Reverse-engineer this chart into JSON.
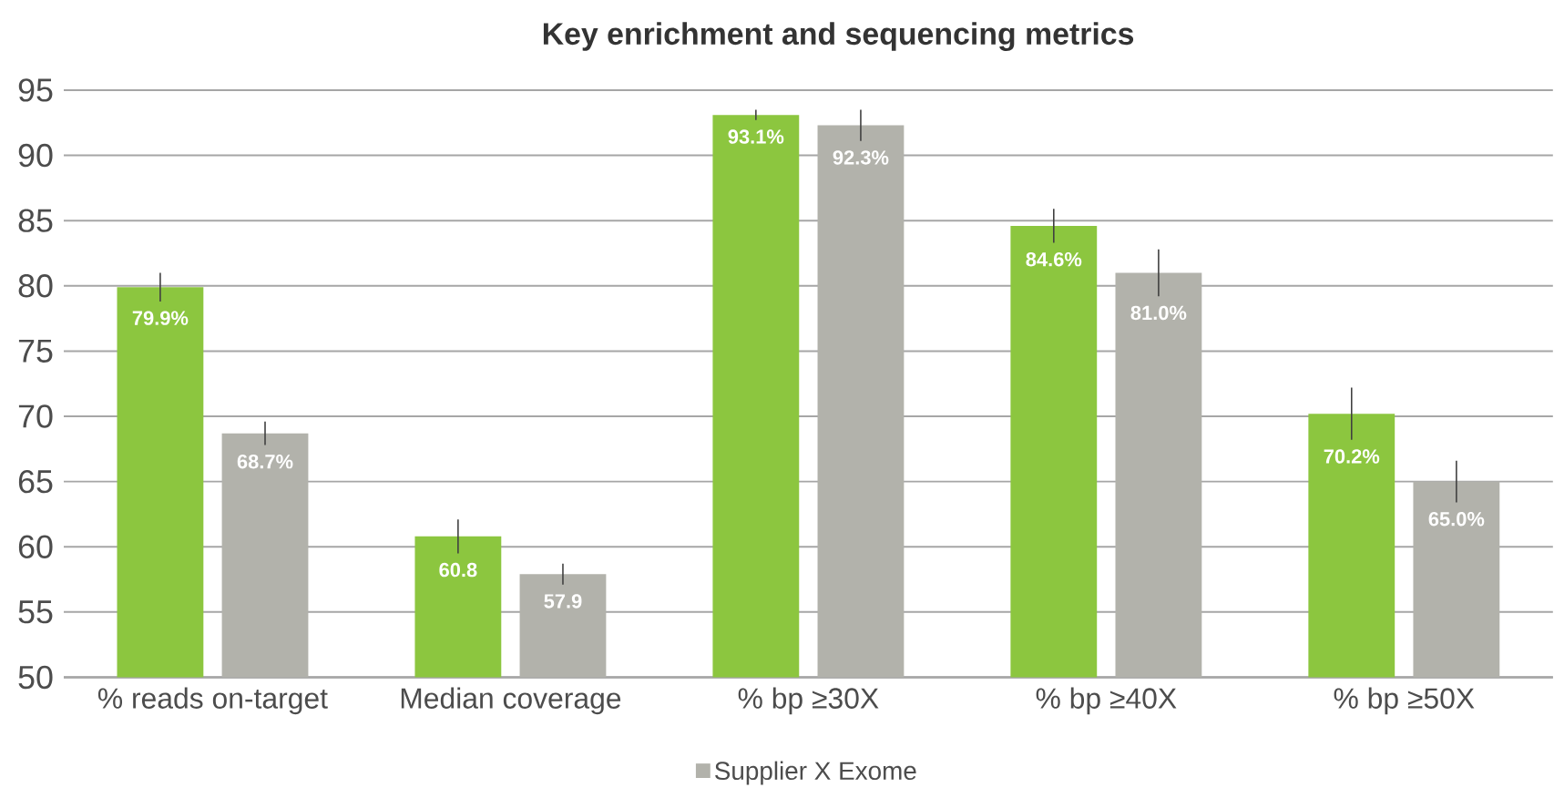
{
  "chart_data": {
    "type": "bar",
    "title": "Key enrichment and sequencing metrics",
    "categories": [
      "% reads on-target",
      "Median coverage",
      "% bp ≥30X",
      "% bp ≥40X",
      "% bp ≥50X"
    ],
    "series": [
      {
        "color": "#8cc63f",
        "values": [
          79.9,
          60.8,
          93.1,
          84.6,
          70.2
        ],
        "errors": [
          1.1,
          1.3,
          0.4,
          1.3,
          2.0
        ],
        "value_labels": [
          "79.9%",
          "60.8",
          "93.1%",
          "84.6%",
          "70.2%"
        ]
      },
      {
        "name": "Supplier X Exome",
        "color": "#b2b2ab",
        "values": [
          68.7,
          57.9,
          92.3,
          81.0,
          65.0
        ],
        "errors": [
          0.9,
          0.8,
          1.2,
          1.8,
          1.6
        ],
        "value_labels": [
          "68.7%",
          "57.9",
          "92.3%",
          "81.0%",
          "65.0%"
        ]
      }
    ],
    "ylim": [
      50,
      95
    ],
    "yticks": [
      50,
      55,
      60,
      65,
      70,
      75,
      80,
      85,
      90,
      95
    ],
    "grid": "y",
    "legend": "bottom"
  }
}
